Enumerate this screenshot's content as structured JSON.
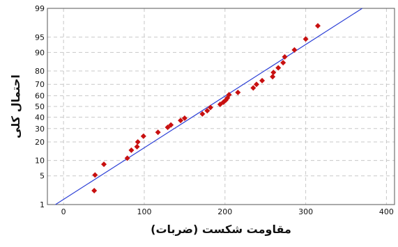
{
  "chart_data": {
    "type": "scatter",
    "title": "",
    "xlabel": "مقاومت شکست (ضربات)",
    "ylabel": "احتمال کلی",
    "xlim": [
      -20,
      410
    ],
    "ylim": [
      1,
      99
    ],
    "yscale": "normal-probability",
    "grid": true,
    "x_ticks": [
      0,
      100,
      200,
      300,
      400
    ],
    "y_ticks": [
      1,
      5,
      10,
      20,
      30,
      40,
      50,
      60,
      70,
      80,
      90,
      95,
      99
    ],
    "fit_line": {
      "from": [
        -10,
        1
      ],
      "to": [
        370,
        99
      ]
    },
    "points": [
      {
        "x": 38,
        "y": 2.3
      },
      {
        "x": 39,
        "y": 5.2
      },
      {
        "x": 50,
        "y": 8.5
      },
      {
        "x": 79,
        "y": 11
      },
      {
        "x": 84,
        "y": 15
      },
      {
        "x": 91,
        "y": 17
      },
      {
        "x": 92,
        "y": 20
      },
      {
        "x": 99,
        "y": 24
      },
      {
        "x": 117,
        "y": 27
      },
      {
        "x": 129,
        "y": 31
      },
      {
        "x": 133,
        "y": 33
      },
      {
        "x": 145,
        "y": 37
      },
      {
        "x": 150,
        "y": 39
      },
      {
        "x": 172,
        "y": 43
      },
      {
        "x": 178,
        "y": 46
      },
      {
        "x": 182,
        "y": 49
      },
      {
        "x": 194,
        "y": 52
      },
      {
        "x": 198,
        "y": 54
      },
      {
        "x": 201,
        "y": 56
      },
      {
        "x": 203,
        "y": 58
      },
      {
        "x": 205,
        "y": 61
      },
      {
        "x": 216,
        "y": 63
      },
      {
        "x": 235,
        "y": 67
      },
      {
        "x": 239,
        "y": 70
      },
      {
        "x": 246,
        "y": 73
      },
      {
        "x": 259,
        "y": 76
      },
      {
        "x": 260,
        "y": 79
      },
      {
        "x": 266,
        "y": 82
      },
      {
        "x": 272,
        "y": 85
      },
      {
        "x": 274,
        "y": 88
      },
      {
        "x": 286,
        "y": 91
      },
      {
        "x": 300,
        "y": 94.5
      },
      {
        "x": 315,
        "y": 97.2
      }
    ]
  },
  "colors": {
    "points": "#c81010",
    "fit_line": "#2b3fd6",
    "grid": "#c8c8c8",
    "axis": "#555555"
  }
}
